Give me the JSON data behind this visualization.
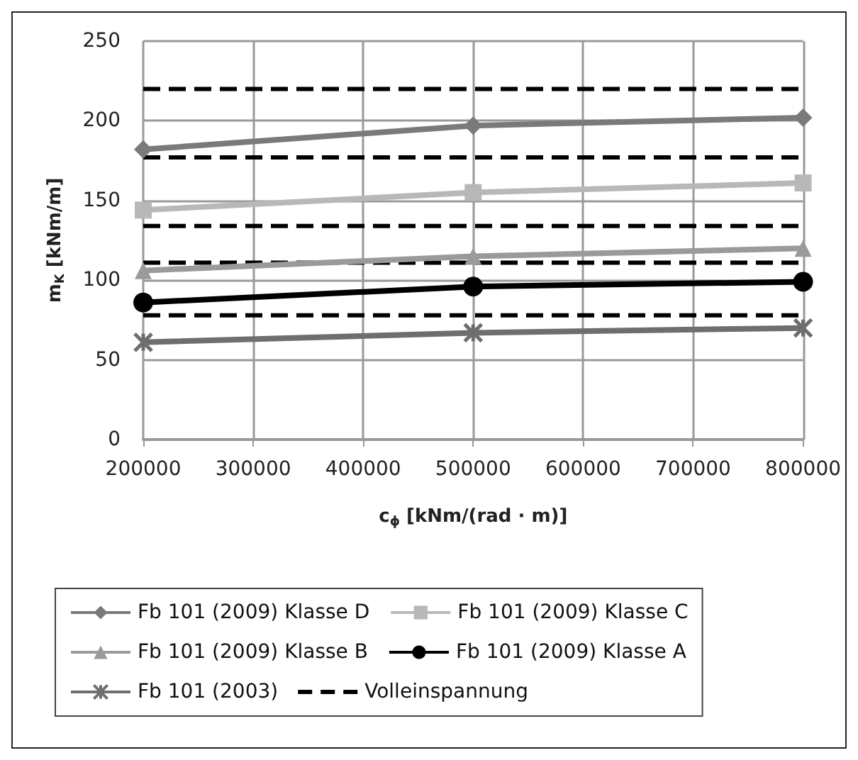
{
  "chart_data": {
    "type": "line",
    "xlabel": "c$_{ϕ}$ [kNm/(rad · m)]",
    "ylabel": "m$_{K}$ [kNm/m]",
    "x": [
      200000,
      500000,
      800000
    ],
    "xlim": [
      200000,
      800000
    ],
    "xticks": [
      200000,
      300000,
      400000,
      500000,
      600000,
      700000,
      800000
    ],
    "ylim": [
      0,
      250
    ],
    "yticks": [
      0,
      50,
      100,
      150,
      200,
      250
    ],
    "grid": true,
    "legend": "bottom",
    "series": [
      {
        "name": "Fb 101 (2009) Klasse D",
        "color": "#7a7a7a",
        "marker": "diamond",
        "values": [
          182,
          197,
          202
        ]
      },
      {
        "name": "Fb 101 (2009) Klasse C",
        "color": "#b8b8b8",
        "marker": "square",
        "values": [
          144,
          155,
          161
        ]
      },
      {
        "name": "Fb 101 (2009) Klasse B",
        "color": "#9a9a9a",
        "marker": "triangle",
        "values": [
          106,
          115,
          120
        ]
      },
      {
        "name": "Fb 101 (2009) Klasse A",
        "color": "#000000",
        "marker": "circle",
        "values": [
          86,
          96,
          99
        ]
      },
      {
        "name": "Fb 101 (2003)",
        "color": "#6e6e6e",
        "marker": "cross",
        "values": [
          61,
          67,
          70
        ]
      },
      {
        "name": "Volleinspannung",
        "color": "#000000",
        "marker": "none",
        "line_style": "dashed",
        "values": [
          220,
          220,
          220
        ]
      },
      {
        "color": "#000000",
        "marker": "none",
        "line_style": "dashed",
        "values": [
          177,
          177,
          177
        ]
      },
      {
        "color": "#000000",
        "marker": "none",
        "line_style": "dashed",
        "values": [
          134,
          134,
          134
        ]
      },
      {
        "color": "#000000",
        "marker": "none",
        "line_style": "dashed",
        "values": [
          111,
          111,
          111
        ]
      },
      {
        "color": "#000000",
        "marker": "none",
        "line_style": "dashed",
        "values": [
          78,
          78,
          78
        ]
      }
    ]
  }
}
